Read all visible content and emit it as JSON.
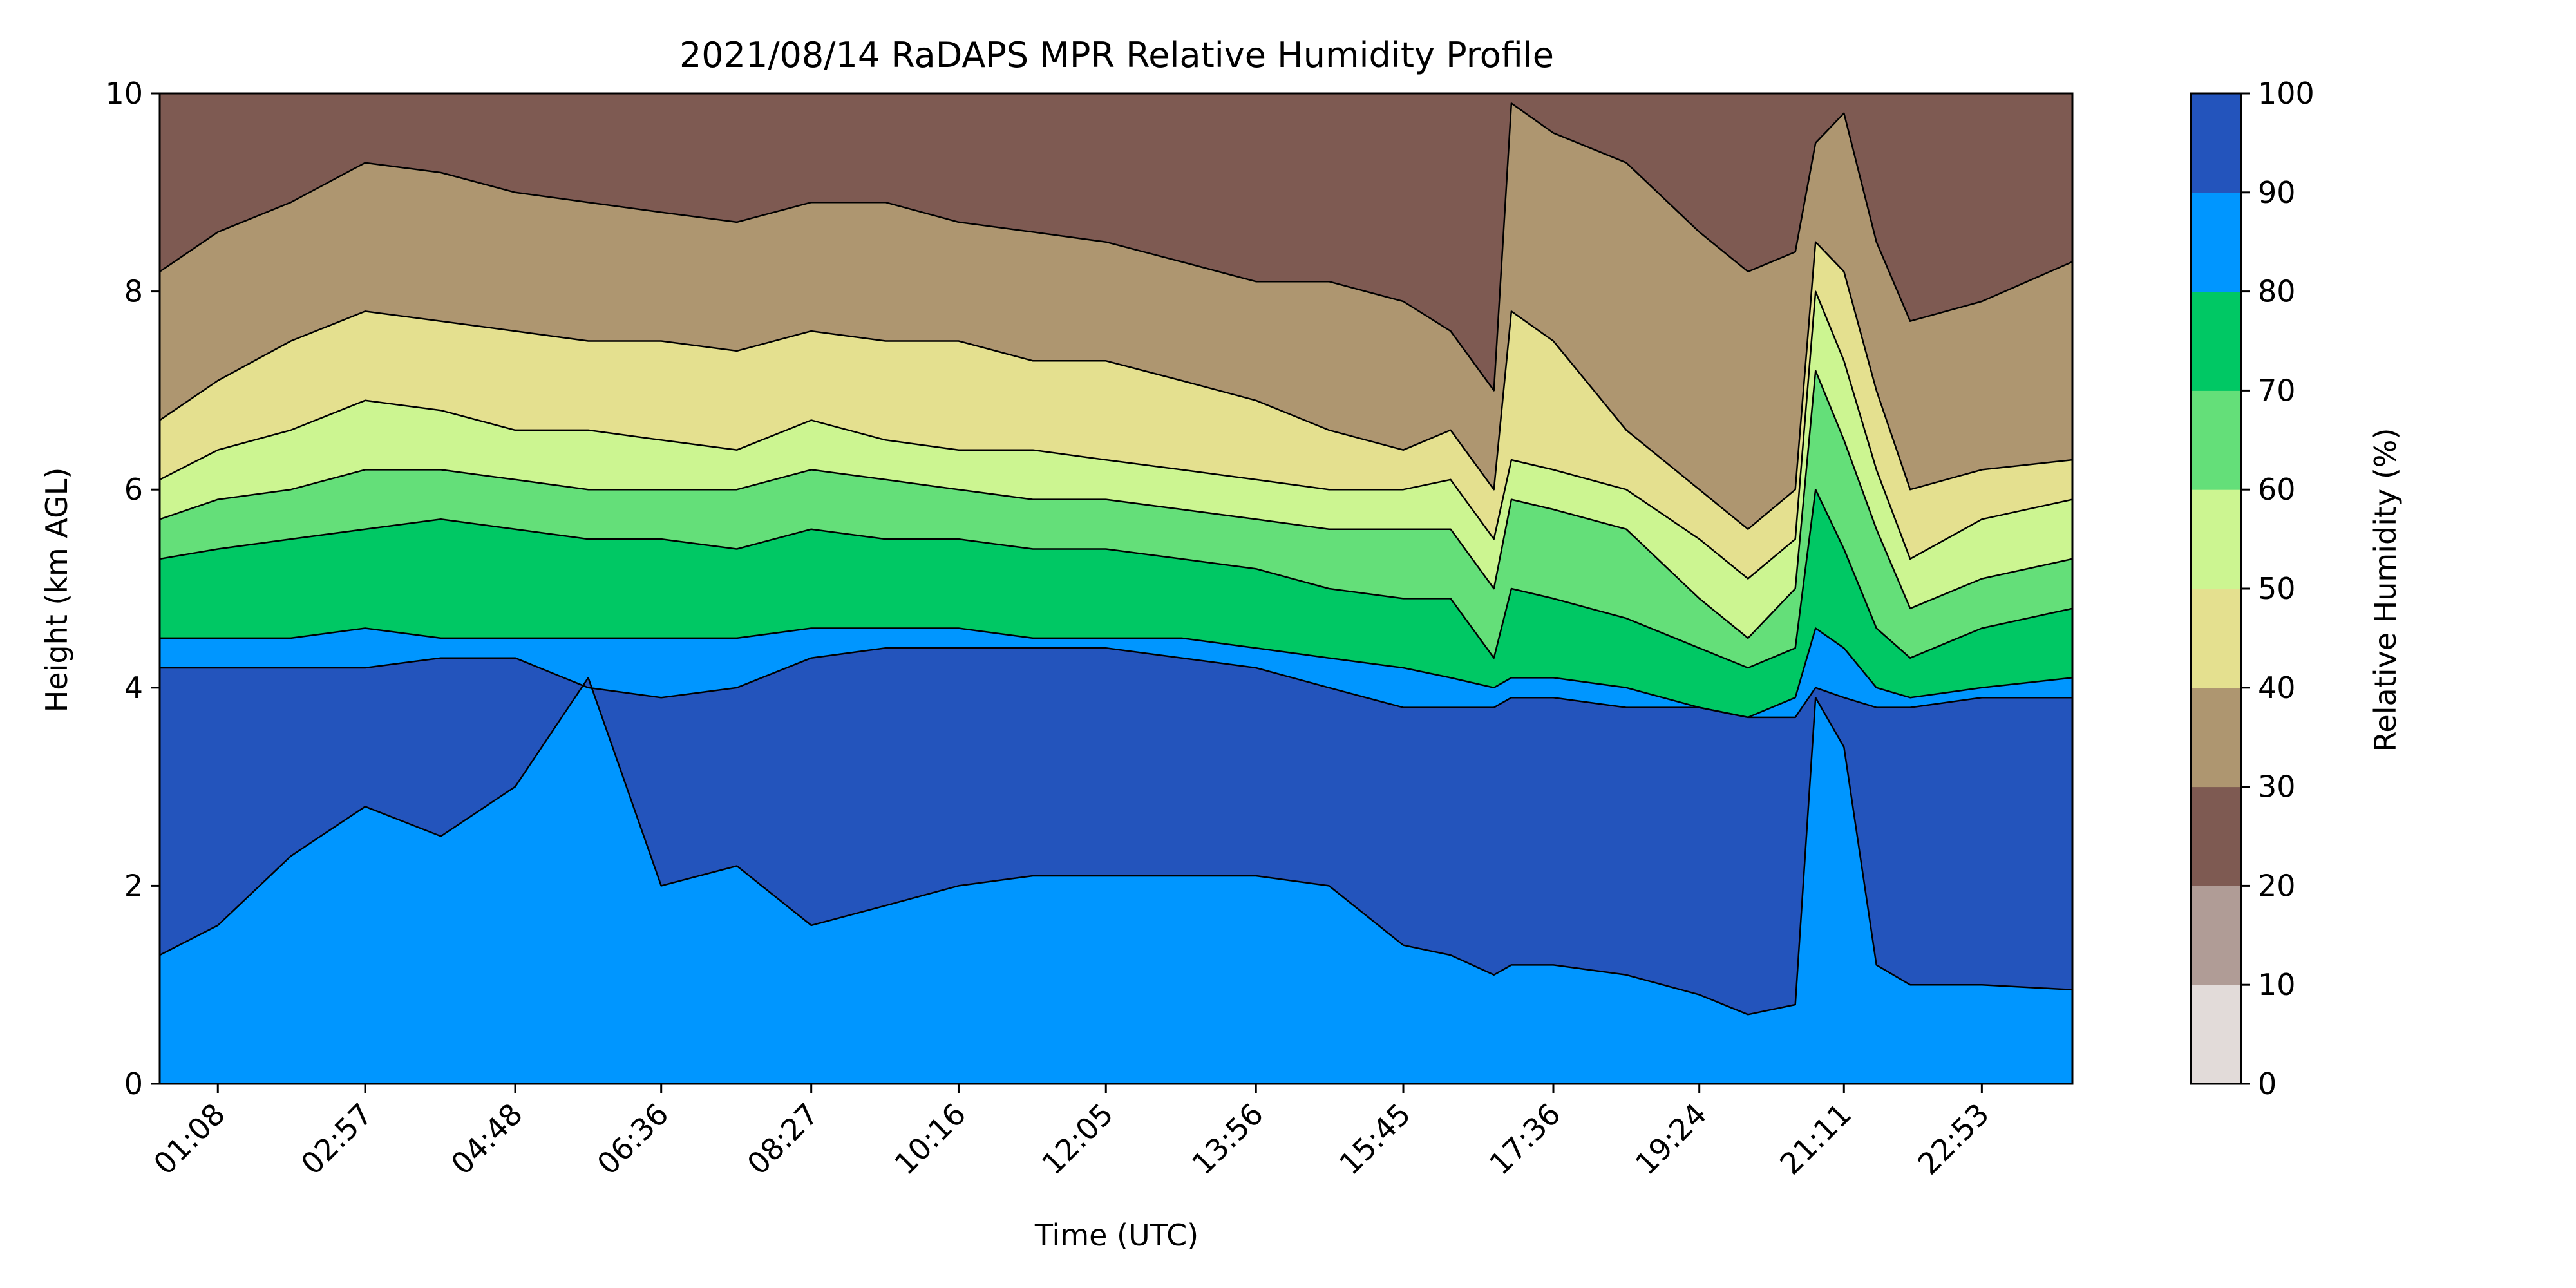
{
  "chart_data": {
    "type": "heatmap",
    "title": "2021/08/14 RaDAPS MPR Relative Humidity Profile",
    "xlabel": "Time (UTC)",
    "ylabel": "Height (km AGL)",
    "xlim": [
      "00:25",
      "24:00"
    ],
    "ylim": [
      0,
      10
    ],
    "xticks": [
      "01:08",
      "02:57",
      "04:48",
      "06:36",
      "08:27",
      "10:16",
      "12:05",
      "13:56",
      "15:45",
      "17:36",
      "19:24",
      "21:11",
      "22:53"
    ],
    "yticks": [
      "0",
      "2",
      "4",
      "6",
      "8",
      "10"
    ],
    "colorbar": {
      "label": "Relative Humidity (%)",
      "levels": [
        0,
        10,
        20,
        30,
        40,
        50,
        60,
        70,
        80,
        90,
        100
      ],
      "level_labels": [
        "0",
        "10",
        "20",
        "30",
        "40",
        "50",
        "60",
        "70",
        "80",
        "90",
        "100"
      ],
      "colors": [
        "#e2dbd9",
        "#b09c96",
        "#7e5a52",
        "#ae9670",
        "#e4e08f",
        "#ccf591",
        "#64df79",
        "#00c864",
        "#0096ff",
        "#2354bc"
      ]
    },
    "contour_heights_km": {
      "times": [
        "00:25",
        "01:08",
        "02:02",
        "02:57",
        "03:53",
        "04:48",
        "05:42",
        "06:36",
        "07:32",
        "08:27",
        "09:22",
        "10:16",
        "11:11",
        "12:05",
        "13:01",
        "13:56",
        "14:50",
        "15:45",
        "16:20",
        "16:52",
        "17:05",
        "17:36",
        "18:30",
        "19:24",
        "20:00",
        "20:35",
        "20:50",
        "21:11",
        "21:35",
        "22:00",
        "22:53",
        "24:00"
      ],
      "rh_30": [
        8.2,
        8.6,
        8.9,
        9.3,
        9.2,
        9.0,
        8.9,
        8.8,
        8.7,
        8.9,
        8.9,
        8.7,
        8.6,
        8.5,
        8.3,
        8.1,
        8.1,
        7.9,
        7.6,
        7.0,
        9.9,
        9.6,
        9.3,
        8.6,
        8.2,
        8.4,
        9.5,
        9.8,
        8.5,
        7.7,
        7.9,
        8.3
      ],
      "rh_40": [
        6.7,
        7.1,
        7.5,
        7.8,
        7.7,
        7.6,
        7.5,
        7.5,
        7.4,
        7.6,
        7.5,
        7.5,
        7.3,
        7.3,
        7.1,
        6.9,
        6.6,
        6.4,
        6.6,
        6.0,
        7.8,
        7.5,
        6.6,
        6.0,
        5.6,
        6.0,
        8.5,
        8.2,
        7.0,
        6.0,
        6.2,
        6.3
      ],
      "rh_50": [
        6.1,
        6.4,
        6.6,
        6.9,
        6.8,
        6.6,
        6.6,
        6.5,
        6.4,
        6.7,
        6.5,
        6.4,
        6.4,
        6.3,
        6.2,
        6.1,
        6.0,
        6.0,
        6.1,
        5.5,
        6.3,
        6.2,
        6.0,
        5.5,
        5.1,
        5.5,
        8.0,
        7.3,
        6.2,
        5.3,
        5.7,
        5.9
      ],
      "rh_60": [
        5.7,
        5.9,
        6.0,
        6.2,
        6.2,
        6.1,
        6.0,
        6.0,
        6.0,
        6.2,
        6.1,
        6.0,
        5.9,
        5.9,
        5.8,
        5.7,
        5.6,
        5.6,
        5.6,
        5.0,
        5.9,
        5.8,
        5.6,
        4.9,
        4.5,
        5.0,
        7.2,
        6.5,
        5.6,
        4.8,
        5.1,
        5.3
      ],
      "rh_70": [
        5.3,
        5.4,
        5.5,
        5.6,
        5.7,
        5.6,
        5.5,
        5.5,
        5.4,
        5.6,
        5.5,
        5.5,
        5.4,
        5.4,
        5.3,
        5.2,
        5.0,
        4.9,
        4.9,
        4.3,
        5.0,
        4.9,
        4.7,
        4.4,
        4.2,
        4.4,
        6.0,
        5.4,
        4.6,
        4.3,
        4.6,
        4.8
      ],
      "rh_80": [
        4.5,
        4.5,
        4.5,
        4.6,
        4.5,
        4.5,
        4.5,
        4.5,
        4.5,
        4.6,
        4.6,
        4.6,
        4.5,
        4.5,
        4.5,
        4.4,
        4.3,
        4.2,
        4.1,
        4.0,
        4.1,
        4.1,
        4.0,
        3.8,
        3.7,
        3.9,
        4.6,
        4.4,
        4.0,
        3.9,
        4.0,
        4.1
      ],
      "rh_90_top": [
        4.2,
        4.2,
        4.2,
        4.2,
        4.3,
        4.3,
        4.0,
        3.9,
        4.0,
        4.3,
        4.4,
        4.4,
        4.4,
        4.4,
        4.3,
        4.2,
        4.0,
        3.8,
        3.8,
        3.8,
        3.9,
        3.9,
        3.8,
        3.8,
        3.7,
        3.7,
        4.0,
        3.9,
        3.8,
        3.8,
        3.9,
        3.9
      ],
      "rh_90_bottom": [
        1.3,
        1.6,
        2.3,
        2.8,
        2.5,
        3.0,
        4.1,
        2.0,
        2.2,
        1.6,
        1.8,
        2.0,
        2.1,
        2.1,
        2.1,
        2.1,
        2.0,
        1.4,
        1.3,
        1.1,
        1.2,
        1.2,
        1.1,
        0.9,
        0.7,
        0.8,
        3.9,
        3.4,
        1.2,
        1.0,
        1.0,
        0.95
      ]
    }
  }
}
